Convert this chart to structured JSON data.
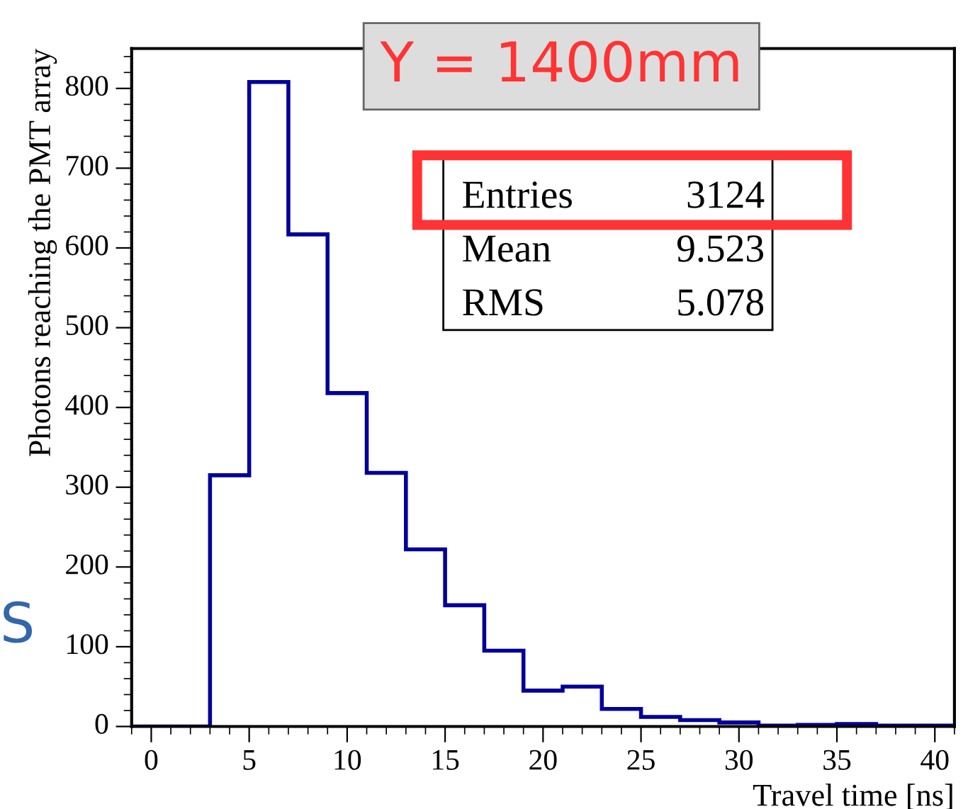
{
  "chart_data": {
    "type": "histogram",
    "title": "Y = 1400mm",
    "xlabel": "Travel time [ns]",
    "ylabel": "Photons reaching the PMT array",
    "bins": [
      -1,
      1,
      3,
      5,
      7,
      9,
      11,
      13,
      15,
      17,
      19,
      21,
      23,
      25,
      27,
      29,
      31,
      33,
      35,
      37,
      39,
      41
    ],
    "values": [
      0,
      0,
      315,
      808,
      617,
      418,
      318,
      222,
      152,
      95,
      45,
      50,
      22,
      12,
      8,
      5,
      1,
      2,
      3,
      1,
      1
    ],
    "color": "#000099",
    "xlim": [
      -1,
      41
    ],
    "xticks": [
      0,
      5,
      10,
      15,
      20,
      25,
      30,
      35,
      40
    ],
    "ylim": [
      0,
      850
    ],
    "yticks": [
      0,
      100,
      200,
      300,
      400,
      500,
      600,
      700,
      800
    ],
    "grid": false,
    "annotations": [
      "Entries 3124",
      "Mean 9.523",
      "RMS 5.078",
      "S"
    ]
  }
}
